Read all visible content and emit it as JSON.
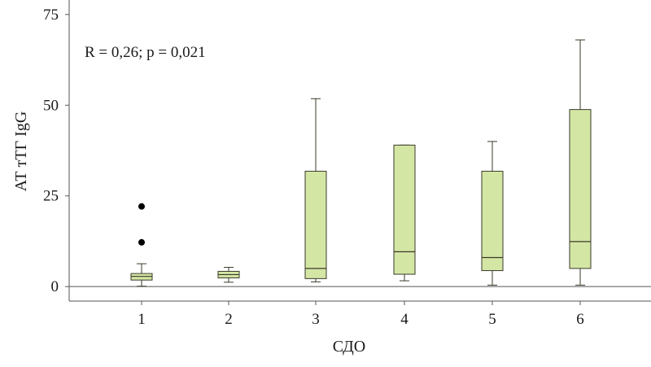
{
  "chart_data": {
    "type": "boxplot",
    "annotation": "R = 0,26; p = 0,021",
    "xlabel": "СДО",
    "ylabel": "АТ тТГ IgG",
    "ylim": [
      -4,
      79
    ],
    "yticks": [
      "0",
      "25",
      "50",
      "75"
    ],
    "ytick_values": [
      0,
      25,
      50,
      75
    ],
    "reference_line_y": 0,
    "grid": false,
    "colors": {
      "box_fill": "#d4e6a4",
      "box_stroke": "#3a3a2a",
      "axis": "#555555",
      "outlier": "#000000"
    },
    "categories": [
      "1",
      "2",
      "3",
      "4",
      "5",
      "6"
    ],
    "boxes": [
      {
        "category": "1",
        "whisker_low": 0.1,
        "q1": 1.8,
        "median": 2.8,
        "q3": 3.6,
        "whisker_high": 6.3,
        "outliers": [
          12.2,
          22.1
        ]
      },
      {
        "category": "2",
        "whisker_low": 1.2,
        "q1": 2.4,
        "median": 3.3,
        "q3": 4.2,
        "whisker_high": 5.3,
        "outliers": []
      },
      {
        "category": "3",
        "whisker_low": 1.3,
        "q1": 2.2,
        "median": 5.0,
        "q3": 31.8,
        "whisker_high": 51.8,
        "outliers": []
      },
      {
        "category": "4",
        "whisker_low": 1.6,
        "q1": 3.4,
        "median": 9.6,
        "q3": 39.0,
        "whisker_high": 39.0,
        "outliers": []
      },
      {
        "category": "5",
        "whisker_low": 0.4,
        "q1": 4.4,
        "median": 8.0,
        "q3": 31.8,
        "whisker_high": 40.0,
        "outliers": []
      },
      {
        "category": "6",
        "whisker_low": 0.4,
        "q1": 5.0,
        "median": 12.4,
        "q3": 48.8,
        "whisker_high": 68.0,
        "outliers": []
      }
    ]
  }
}
